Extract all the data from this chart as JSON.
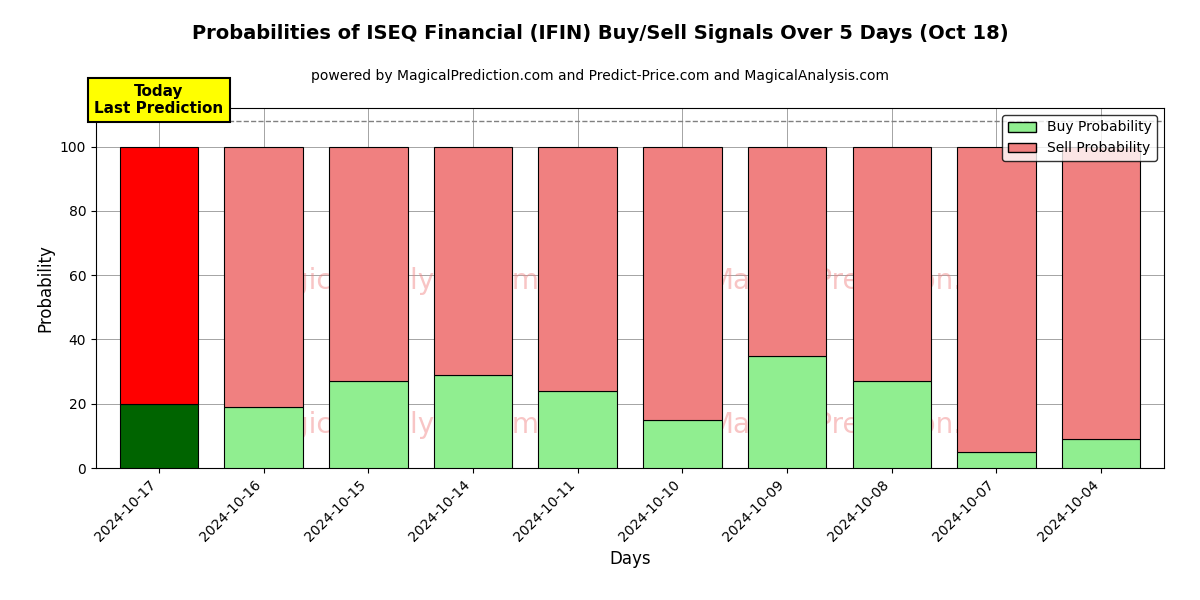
{
  "title": "Probabilities of ISEQ Financial (IFIN) Buy/Sell Signals Over 5 Days (Oct 18)",
  "subtitle": "powered by MagicalPrediction.com and Predict-Price.com and MagicalAnalysis.com",
  "xlabel": "Days",
  "ylabel": "Probability",
  "categories": [
    "2024-10-17",
    "2024-10-16",
    "2024-10-15",
    "2024-10-14",
    "2024-10-11",
    "2024-10-10",
    "2024-10-09",
    "2024-10-08",
    "2024-10-07",
    "2024-10-04"
  ],
  "buy_values": [
    20,
    19,
    27,
    29,
    24,
    15,
    35,
    27,
    5,
    9
  ],
  "sell_values": [
    80,
    81,
    73,
    71,
    76,
    85,
    65,
    73,
    95,
    91
  ],
  "today_buy_color": "#006400",
  "today_sell_color": "#ff0000",
  "buy_color": "#90EE90",
  "sell_color": "#F08080",
  "bar_edge_color": "#000000",
  "today_label_bg": "#ffff00",
  "today_label_text": "Today\nLast Prediction",
  "legend_buy_label": "Buy Probability",
  "legend_sell_label": "Sell Probability",
  "ylim": [
    0,
    112
  ],
  "yticks": [
    0,
    20,
    40,
    60,
    80,
    100
  ],
  "dashed_line_y": 108,
  "watermark_color": "#F08080",
  "watermark_alpha": 0.45,
  "title_fontsize": 14,
  "subtitle_fontsize": 10,
  "axis_label_fontsize": 12,
  "tick_label_fontsize": 10
}
